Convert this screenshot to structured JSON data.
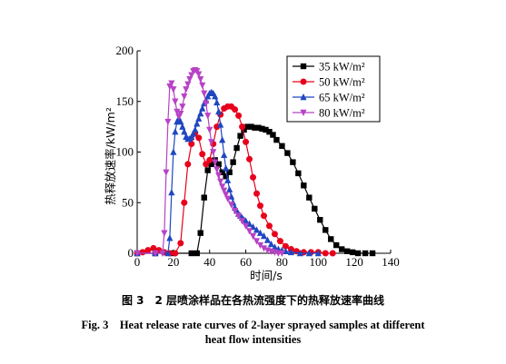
{
  "chart_data": {
    "type": "line",
    "ylabel": "热释放速率/kW/m²",
    "xlabel": "时间/s",
    "xlim": [
      0,
      140
    ],
    "ylim": [
      0,
      200
    ],
    "xticks": [
      0,
      20,
      40,
      60,
      80,
      100,
      120,
      140
    ],
    "yticks": [
      0,
      50,
      100,
      150,
      200
    ],
    "legend_position": "top-right",
    "grid": false,
    "series": [
      {
        "name": "35 kW/m²",
        "color": "#000000",
        "marker": "square",
        "x": [
          0,
          10,
          20,
          30,
          33,
          35,
          37,
          39,
          41,
          43,
          45,
          47,
          49,
          51,
          53,
          55,
          57,
          59,
          61,
          63,
          65,
          67,
          69,
          71,
          73,
          75,
          77,
          80,
          83,
          86,
          89,
          92,
          95,
          98,
          101,
          104,
          107,
          110,
          113,
          116,
          119,
          122,
          126,
          130
        ],
        "y": [
          0,
          0,
          0,
          0,
          0,
          20,
          55,
          82,
          88,
          92,
          88,
          80,
          76,
          80,
          90,
          104,
          116,
          122,
          125,
          125,
          124,
          124,
          123,
          122,
          120,
          117,
          112,
          106,
          99,
          90,
          79,
          67,
          55,
          44,
          33,
          23,
          14,
          8,
          4,
          2,
          1,
          0,
          0,
          0
        ]
      },
      {
        "name": "50 kW/m²",
        "color": "#e8001c",
        "marker": "circle",
        "x": [
          0,
          3,
          6,
          9,
          12,
          15,
          18,
          21,
          24,
          26,
          28,
          30,
          32,
          34,
          36,
          38,
          40,
          42,
          44,
          46,
          48,
          50,
          52,
          54,
          56,
          58,
          60,
          62,
          64,
          66,
          68,
          70,
          73,
          76,
          79,
          82,
          85,
          88,
          92,
          96,
          100,
          104,
          108
        ],
        "y": [
          0,
          1,
          3,
          5,
          3,
          1,
          0,
          0,
          10,
          50,
          88,
          108,
          119,
          114,
          98,
          88,
          92,
          108,
          125,
          137,
          143,
          145,
          145,
          142,
          136,
          125,
          110,
          93,
          75,
          59,
          47,
          37,
          27,
          19,
          12,
          7,
          4,
          2,
          1,
          1,
          1,
          0,
          0
        ]
      },
      {
        "name": "65 kW/m²",
        "color": "#1f47c0",
        "marker": "triangle",
        "x": [
          0,
          10,
          17,
          18,
          19,
          20,
          21,
          22,
          23,
          24,
          25,
          26,
          27,
          28,
          29,
          30,
          31,
          32,
          33,
          34,
          35,
          36,
          37,
          38,
          39,
          40,
          41,
          42,
          43,
          44,
          45,
          46,
          47,
          48,
          49,
          50,
          51,
          52,
          53,
          54,
          55,
          56,
          57,
          58,
          59,
          60,
          62,
          64,
          66,
          68,
          70,
          72,
          74,
          76,
          78,
          80,
          82,
          85,
          90,
          95,
          100
        ],
        "y": [
          0,
          0,
          0,
          15,
          60,
          100,
          120,
          130,
          133,
          130,
          125,
          120,
          115,
          113,
          113,
          115,
          118,
          122,
          128,
          133,
          138,
          143,
          148,
          151,
          155,
          158,
          159,
          158,
          155,
          149,
          140,
          127,
          112,
          97,
          84,
          72,
          63,
          56,
          50,
          45,
          42,
          39,
          37,
          35,
          33,
          32,
          29,
          26,
          23,
          20,
          17,
          13,
          9,
          6,
          4,
          3,
          2,
          1,
          0,
          0,
          0
        ]
      },
      {
        "name": "80 kW/m²",
        "color": "#b842c6",
        "marker": "triangle-down",
        "x": [
          0,
          10,
          14,
          15,
          16,
          17,
          18,
          19,
          20,
          21,
          22,
          23,
          24,
          25,
          26,
          27,
          28,
          29,
          30,
          31,
          32,
          33,
          34,
          35,
          36,
          37,
          38,
          39,
          40,
          41,
          42,
          43,
          44,
          45,
          46,
          47,
          48,
          49,
          50,
          52,
          54,
          56,
          58,
          60,
          62,
          64,
          66,
          68,
          70,
          72,
          74,
          76,
          78,
          80
        ],
        "y": [
          0,
          0,
          0,
          20,
          80,
          130,
          165,
          168,
          162,
          150,
          140,
          135,
          138,
          145,
          155,
          162,
          167,
          172,
          176,
          180,
          181,
          180,
          177,
          172,
          166,
          158,
          148,
          136,
          122,
          110,
          100,
          90,
          83,
          77,
          71,
          66,
          62,
          58,
          54,
          48,
          42,
          37,
          32,
          27,
          22,
          17,
          12,
          8,
          5,
          3,
          2,
          1,
          0,
          0
        ]
      }
    ]
  },
  "caption": {
    "zh": "图 3　2 层喷涂样品在各热流强度下的热释放速率曲线",
    "en_line1": "Fig. 3　Heat release rate curves of 2-layer sprayed samples at different",
    "en_line2": "heat flow intensities"
  }
}
